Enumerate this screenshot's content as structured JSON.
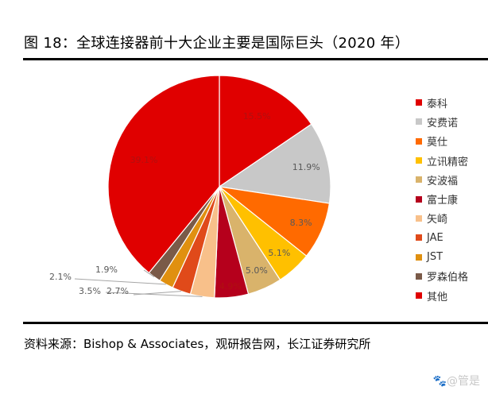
{
  "header": {
    "title": "图 18：全球连接器前十大企业主要是国际巨头（2020 年）"
  },
  "footer": {
    "source": "资料来源：Bishop & Associates，观研报告网，长江证券研究所",
    "watermark": "🐾@管是"
  },
  "chart_data": {
    "type": "pie",
    "title": "全球连接器前十大企业主要是国际巨头（2020 年）",
    "figure_number": "图 18",
    "categories": [
      "泰科",
      "安费诺",
      "莫仕",
      "立讯精密",
      "安波福",
      "富士康",
      "矢崎",
      "JAE",
      "JST",
      "罗森伯格",
      "其他"
    ],
    "values": [
      15.5,
      11.9,
      8.3,
      5.1,
      5.0,
      4.9,
      3.5,
      2.7,
      2.1,
      1.9,
      39.1
    ],
    "labels": [
      "15.5%",
      "11.9%",
      "8.3%",
      "5.1%",
      "5.0%",
      "4.9%",
      "3.5%",
      "2.7%",
      "2.1%",
      "1.9%",
      "39.1%"
    ],
    "colors": [
      "#e00000",
      "#c8c8c8",
      "#ff6a00",
      "#ffc000",
      "#d9b36b",
      "#b5001c",
      "#f8c08a",
      "#e04a1a",
      "#e09010",
      "#7a5a48",
      "#e00000"
    ],
    "start_angle_deg": 0,
    "direction": "clockwise",
    "legend_position": "right",
    "unit": "%"
  },
  "legend": {
    "items": [
      {
        "label": "泰科",
        "color": "#e00000"
      },
      {
        "label": "安费诺",
        "color": "#c8c8c8"
      },
      {
        "label": "莫仕",
        "color": "#ff6a00"
      },
      {
        "label": "立讯精密",
        "color": "#ffc000"
      },
      {
        "label": "安波福",
        "color": "#d9b36b"
      },
      {
        "label": "富士康",
        "color": "#b5001c"
      },
      {
        "label": "矢崎",
        "color": "#f8c08a"
      },
      {
        "label": "JAE",
        "color": "#e04a1a"
      },
      {
        "label": "JST",
        "color": "#e09010"
      },
      {
        "label": "罗森伯格",
        "color": "#7a5a48"
      },
      {
        "label": "其他",
        "color": "#e00000"
      }
    ]
  }
}
